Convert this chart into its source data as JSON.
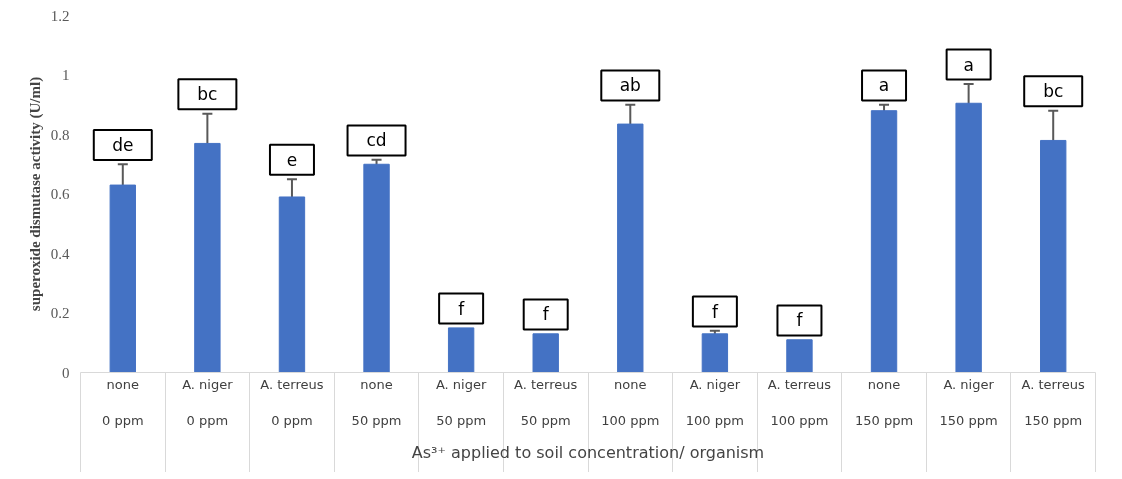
{
  "chart_data": {
    "type": "bar",
    "xlabel": "As³⁺ applied to soil concentration/ organism",
    "ylabel": "superoxide dismutase activity (U/ml)",
    "categories": [
      "none\n0 ppm",
      "A. niger\n0 ppm",
      "A. terreus\n0 ppm",
      "none\n50 ppm",
      "A. niger\n50 ppm",
      "A. terreus\n50 ppm",
      "none\n100 ppm",
      "A. niger\n100 ppm",
      "A. terreus\n100 ppm",
      "none\n150 ppm",
      "A. niger\n150 ppm",
      "A. terreus\n150 ppm"
    ],
    "values": [
      0.63,
      0.77,
      0.59,
      0.7,
      0.15,
      0.13,
      0.835,
      0.13,
      0.11,
      0.88,
      0.905,
      0.78
    ],
    "errors": [
      0.07,
      0.1,
      0.06,
      0.015,
      null,
      null,
      0.065,
      0.01,
      null,
      0.02,
      0.065,
      0.1
    ],
    "value_labels": [
      "de",
      "bc",
      "e",
      "cd",
      "f",
      "f",
      "ab",
      "f",
      "f",
      "a",
      "a",
      "bc"
    ],
    "color": "#4472c4",
    "ylim": [
      0,
      1.2
    ],
    "yticks": [
      0,
      0.2,
      0.4,
      0.6,
      0.8,
      1,
      1.2
    ],
    "grid": false
  }
}
